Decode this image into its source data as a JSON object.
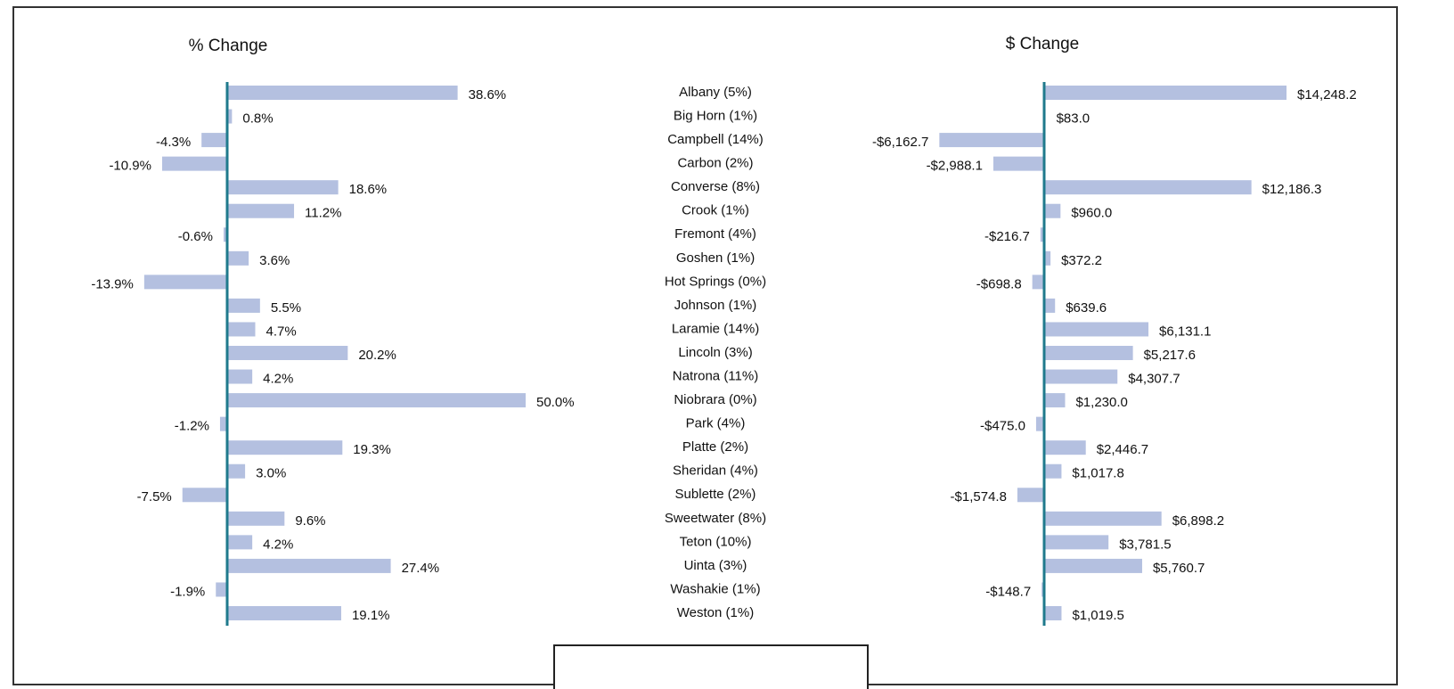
{
  "chart_data": [
    {
      "type": "bar",
      "orientation": "horizontal",
      "title": "% Change",
      "color": "#b4c0e0",
      "categories": [
        "Albany (5%)",
        "Big Horn (1%)",
        "Campbell (14%)",
        "Carbon (2%)",
        "Converse (8%)",
        "Crook (1%)",
        "Fremont (4%)",
        "Goshen (1%)",
        "Hot Springs (0%)",
        "Johnson (1%)",
        "Laramie (14%)",
        "Lincoln (3%)",
        "Natrona (11%)",
        "Niobrara (0%)",
        "Park (4%)",
        "Platte (2%)",
        "Sheridan (4%)",
        "Sublette (2%)",
        "Sweetwater (8%)",
        "Teton (10%)",
        "Uinta (3%)",
        "Washakie (1%)",
        "Weston (1%)"
      ],
      "values": [
        38.6,
        0.8,
        -4.3,
        -10.9,
        18.6,
        11.2,
        -0.6,
        3.6,
        -13.9,
        5.5,
        4.7,
        20.2,
        4.2,
        50.0,
        -1.2,
        19.3,
        3.0,
        -7.5,
        9.6,
        4.2,
        27.4,
        -1.9,
        19.1
      ],
      "value_labels": [
        "38.6%",
        "0.8%",
        "-4.3%",
        "-10.9%",
        "18.6%",
        "11.2%",
        "-0.6%",
        "3.6%",
        "-13.9%",
        "5.5%",
        "4.7%",
        "20.2%",
        "4.2%",
        "50.0%",
        "-1.2%",
        "19.3%",
        "3.0%",
        "-7.5%",
        "9.6%",
        "4.2%",
        "27.4%",
        "-1.9%",
        "19.1%"
      ]
    },
    {
      "type": "bar",
      "orientation": "horizontal",
      "title": "$ Change",
      "color": "#b4c0e0",
      "values": [
        14248.2,
        83.0,
        -6162.7,
        -2988.1,
        12186.3,
        960.0,
        -216.7,
        372.2,
        -698.8,
        639.6,
        6131.1,
        5217.6,
        4307.7,
        1230.0,
        -475.0,
        2446.7,
        1017.8,
        -1574.8,
        6898.2,
        3781.5,
        5760.7,
        -148.7,
        1019.5
      ],
      "value_labels": [
        "$14,248.2",
        "$83.0",
        "-$6,162.7",
        "-$2,988.1",
        "$12,186.3",
        "$960.0",
        "-$216.7",
        "$372.2",
        "-$698.8",
        "$639.6",
        "$6,131.1",
        "$5,217.6",
        "$4,307.7",
        "$1,230.0",
        "-$475.0",
        "$2,446.7",
        "$1,017.8",
        "-$1,574.8",
        "$6,898.2",
        "$3,781.5",
        "$5,760.7",
        "-$148.7",
        "$1,019.5"
      ]
    }
  ]
}
